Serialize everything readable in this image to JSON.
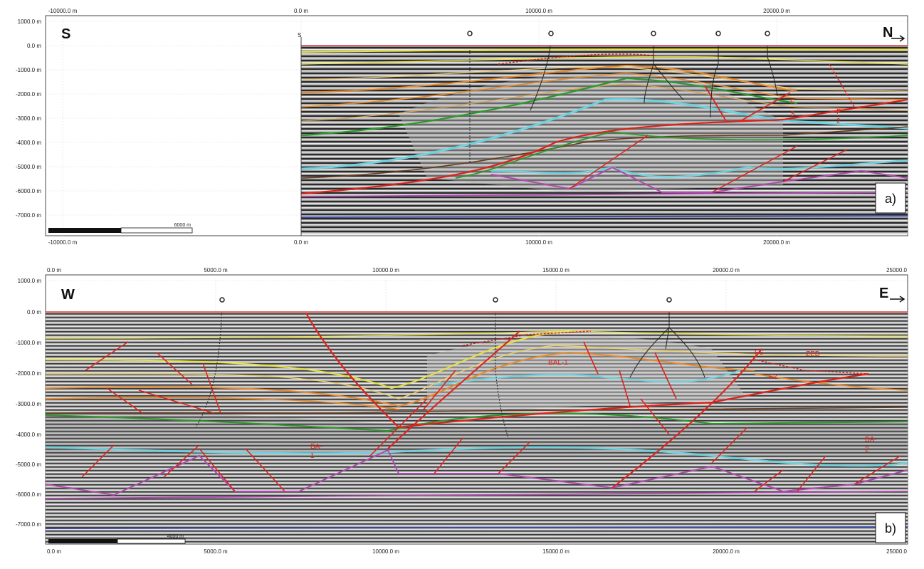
{
  "panel_a": {
    "top_ticks": [
      "-10000.0 m",
      "0.0 m",
      "10000.0 m",
      "20000.0 m"
    ],
    "bottom_ticks": [
      "-10000.0 m",
      "0.0 m",
      "10000.0 m",
      "20000.0 m"
    ],
    "depth_ticks": [
      "1000.0 m",
      "0.0 m",
      "-1000.0 m",
      "-2000.0 m",
      "-3000.0 m",
      "-4000.0 m",
      "-5000.0 m",
      "-6000.0 m",
      "-7000.0 m"
    ],
    "left_direction": "S",
    "right_direction": "N",
    "section_start_label": "S",
    "scale_bar_label": "6000 m",
    "panel_label": "a)",
    "fault_labels": [
      "F",
      "S",
      "F",
      "2"
    ]
  },
  "panel_b": {
    "top_ticks": [
      "0.0 m",
      "5000.0 m",
      "10000.0 m",
      "15000.0 m",
      "20000.0 m",
      "25000.0"
    ],
    "bottom_ticks": [
      "0.0 m",
      "5000.0 m",
      "10000.0 m",
      "15000.0 m",
      "20000.0 m",
      "25000.0"
    ],
    "depth_ticks": [
      "1000.0 m",
      "0.0 m",
      "-1000.0 m",
      "-2000.0 m",
      "-3000.0 m",
      "-4000.0 m",
      "-5000.0 m",
      "-6000.0 m",
      "-7000.0 m"
    ],
    "left_direction": "W",
    "right_direction": "E",
    "scale_bar_label": "4000 m",
    "panel_label": "b)",
    "fault_labels": [
      "BAL-1",
      "FS",
      "ZED",
      "F2",
      "BA-",
      "1",
      "BA-",
      "2"
    ]
  },
  "colors": {
    "surface_red": "#e0403a",
    "horizon_yellow": "#e8e23a",
    "horizon_orange": "#e8892a",
    "horizon_green": "#2a9a2a",
    "horizon_cyan": "#6cd3e0",
    "horizon_magenta": "#b04ab0",
    "basement_blue": "#3a4aa0",
    "fault_red": "#e0201a"
  }
}
